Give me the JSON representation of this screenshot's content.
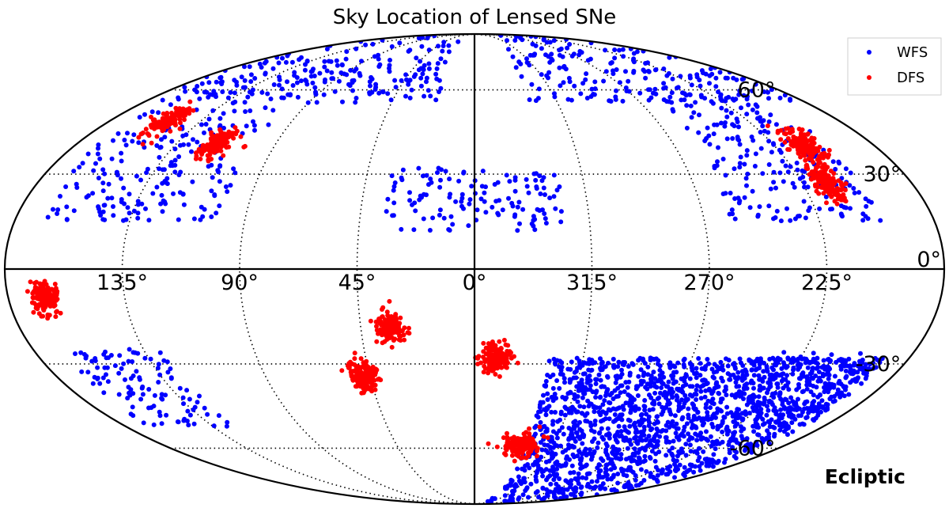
{
  "chart_data": {
    "type": "scatter",
    "projection": "mollweide",
    "title": "Sky Location of Lensed SNe",
    "frame_label": "Ecliptic",
    "grid": true,
    "legend_placement": "top-right",
    "x_tick_labels": [
      "135°",
      "90°",
      "45°",
      "0°",
      "315°",
      "270°",
      "225°"
    ],
    "x_tick_longitudes": [
      135,
      90,
      45,
      0,
      315,
      270,
      225
    ],
    "y_tick_labels": [
      "60°",
      "30°",
      "0°",
      "-30°",
      "-60°"
    ],
    "y_tick_latitudes": [
      60,
      30,
      0,
      -30,
      -60
    ],
    "series": [
      {
        "name": "WFS",
        "color": "#0000ff",
        "regions": [
          {
            "lon_range": [
              190,
              330
            ],
            "lat_range": [
              -88,
              -28
            ],
            "count": 1700
          },
          {
            "lon_range": [
              20,
              330
            ],
            "lat_range": [
              55,
              88
            ],
            "count": 420
          },
          {
            "lon_range": [
              100,
              170
            ],
            "lat_range": [
              15,
              60
            ],
            "count": 210
          },
          {
            "lon_range": [
              200,
              260
            ],
            "lat_range": [
              15,
              60
            ],
            "count": 210
          },
          {
            "lon_range": [
              325,
              35
            ],
            "lat_range": [
              12,
              32
            ],
            "count": 130
          },
          {
            "lon_range": [
              125,
              168
            ],
            "lat_range": [
              -52,
              -25
            ],
            "count": 110
          },
          {
            "lon_range": [
              192,
              235
            ],
            "lat_range": [
              -52,
              -25
            ],
            "count": 110
          }
        ]
      },
      {
        "name": "DFS",
        "color": "#ff0000",
        "clusters": [
          {
            "lon": 151,
            "lat": 48,
            "count": 120
          },
          {
            "lon": 117,
            "lat": 40,
            "count": 140
          },
          {
            "lon": 212,
            "lat": 40,
            "count": 140
          },
          {
            "lon": 215,
            "lat": 27,
            "count": 150
          },
          {
            "lon": 166,
            "lat": -9,
            "count": 140
          },
          {
            "lon": 33,
            "lat": -18,
            "count": 140
          },
          {
            "lon": 351,
            "lat": -28,
            "count": 140
          },
          {
            "lon": 48,
            "lat": -34,
            "count": 150
          },
          {
            "lon": 333,
            "lat": -59,
            "count": 140
          }
        ]
      }
    ]
  }
}
